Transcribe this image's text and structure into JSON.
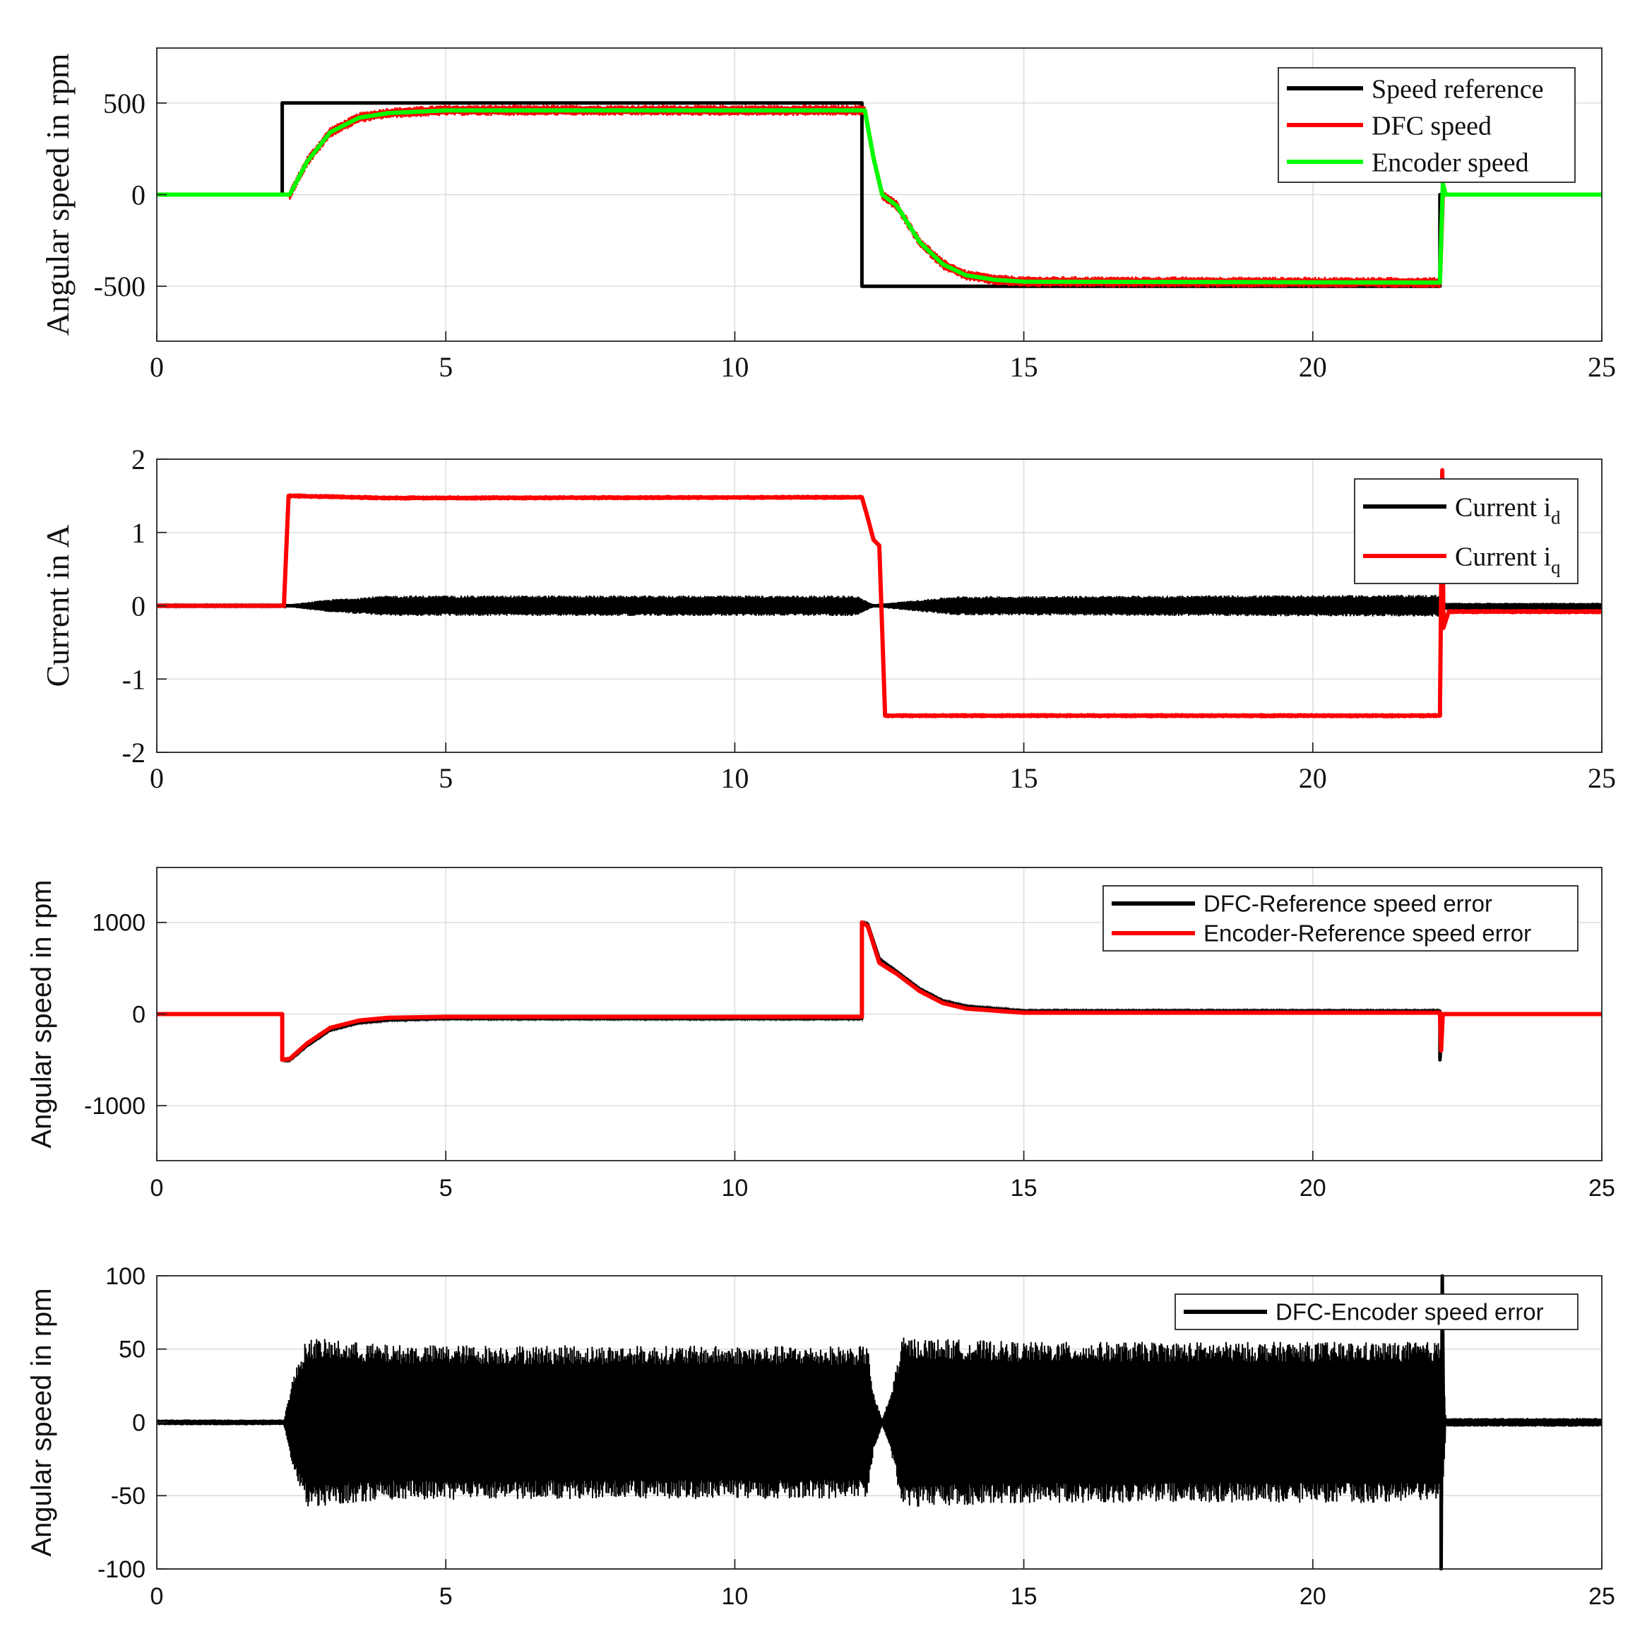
{
  "figure": {
    "background": "#ffffff",
    "grid_color": "#dcdcdc",
    "axis_color": "#262626"
  },
  "chart_data": [
    {
      "type": "line",
      "font": "serif",
      "title": "",
      "xlabel": "",
      "ylabel": "Angular speed in rpm",
      "xlim": [
        0,
        25
      ],
      "ylim": [
        -800,
        800
      ],
      "xticks": [
        0,
        5,
        10,
        15,
        20,
        25
      ],
      "yticks": [
        -500,
        0,
        500
      ],
      "ytick_labels": [
        "-500",
        "0",
        "500"
      ],
      "grid": true,
      "legend": {
        "position": "top-right",
        "entries": [
          {
            "label": "Speed reference",
            "color": "#000000"
          },
          {
            "label": "DFC speed",
            "color": "#ff0000"
          },
          {
            "label": "Encoder speed",
            "color": "#00ff00"
          }
        ]
      },
      "series": [
        {
          "name": "Speed reference",
          "color": "#000000",
          "points": [
            [
              0,
              0
            ],
            [
              2.17,
              0
            ],
            [
              2.17,
              500
            ],
            [
              12.2,
              500
            ],
            [
              12.2,
              -500
            ],
            [
              22.2,
              -500
            ],
            [
              22.2,
              0
            ],
            [
              25,
              0
            ]
          ]
        },
        {
          "name": "DFC speed",
          "color": "#ff0000",
          "band": 30,
          "points": [
            [
              0,
              0
            ],
            [
              2.3,
              0
            ],
            [
              2.6,
              180
            ],
            [
              3.0,
              340
            ],
            [
              3.5,
              420
            ],
            [
              4.0,
              445
            ],
            [
              5.0,
              460
            ],
            [
              12.25,
              460
            ],
            [
              12.4,
              200
            ],
            [
              12.55,
              0
            ],
            [
              12.8,
              -60
            ],
            [
              13.2,
              -260
            ],
            [
              13.6,
              -380
            ],
            [
              14.0,
              -440
            ],
            [
              14.5,
              -465
            ],
            [
              15.0,
              -475
            ],
            [
              22.2,
              -480
            ],
            [
              22.25,
              0
            ],
            [
              25,
              0
            ]
          ]
        },
        {
          "name": "Encoder speed",
          "color": "#00ff00",
          "band": 0,
          "points": [
            [
              0,
              0
            ],
            [
              2.3,
              0
            ],
            [
              2.6,
              180
            ],
            [
              3.0,
              340
            ],
            [
              3.5,
              420
            ],
            [
              4.0,
              445
            ],
            [
              5.0,
              460
            ],
            [
              12.25,
              460
            ],
            [
              12.4,
              200
            ],
            [
              12.55,
              0
            ],
            [
              12.8,
              -60
            ],
            [
              13.2,
              -260
            ],
            [
              13.6,
              -380
            ],
            [
              14.0,
              -440
            ],
            [
              14.5,
              -465
            ],
            [
              15.0,
              -475
            ],
            [
              22.2,
              -480
            ],
            [
              22.25,
              60
            ],
            [
              22.3,
              0
            ],
            [
              25,
              0
            ]
          ]
        }
      ]
    },
    {
      "type": "line",
      "font": "serif",
      "title": "",
      "xlabel": "",
      "ylabel": "Current in A",
      "xlim": [
        0,
        25
      ],
      "ylim": [
        -2,
        2
      ],
      "xticks": [
        0,
        5,
        10,
        15,
        20,
        25
      ],
      "yticks": [
        -2,
        -1,
        0,
        1,
        2
      ],
      "ytick_labels": [
        "-2",
        "-1",
        "0",
        "1",
        "2"
      ],
      "grid": true,
      "legend": {
        "position": "top-right",
        "entries": [
          {
            "label": "Current i",
            "subscript": "d",
            "color": "#000000"
          },
          {
            "label": "Current i",
            "subscript": "q",
            "color": "#ff0000"
          }
        ]
      },
      "series": [
        {
          "name": "Current i_d",
          "color": "#000000",
          "band_points": [
            [
              0,
              0.01
            ],
            [
              2.2,
              0.01
            ],
            [
              3.0,
              0.09
            ],
            [
              4.0,
              0.14
            ],
            [
              12.1,
              0.14
            ],
            [
              12.4,
              0.02
            ],
            [
              12.8,
              0.05
            ],
            [
              13.8,
              0.13
            ],
            [
              22.2,
              0.15
            ],
            [
              22.3,
              0.04
            ],
            [
              25,
              0.04
            ]
          ],
          "points": [
            [
              0,
              0
            ],
            [
              22.25,
              0
            ],
            [
              22.3,
              -0.03
            ],
            [
              25,
              -0.03
            ]
          ]
        },
        {
          "name": "Current i_q",
          "color": "#ff0000",
          "band": 0.035,
          "points": [
            [
              0,
              0
            ],
            [
              2.2,
              0
            ],
            [
              2.28,
              1.5
            ],
            [
              4.0,
              1.47
            ],
            [
              12.2,
              1.48
            ],
            [
              12.3,
              1.2
            ],
            [
              12.4,
              0.9
            ],
            [
              12.5,
              0.82
            ],
            [
              12.6,
              -1.5
            ],
            [
              22.2,
              -1.5
            ],
            [
              22.24,
              1.85
            ],
            [
              22.26,
              -0.3
            ],
            [
              22.35,
              -0.08
            ],
            [
              25,
              -0.08
            ]
          ]
        }
      ]
    },
    {
      "type": "line",
      "font": "sans",
      "title": "",
      "xlabel": "",
      "ylabel": "Angular speed in rpm",
      "xlim": [
        0,
        25
      ],
      "ylim": [
        -1600,
        1600
      ],
      "xticks": [
        0,
        5,
        10,
        15,
        20,
        25
      ],
      "yticks": [
        -1000,
        0,
        1000
      ],
      "ytick_labels": [
        "-1000",
        "0",
        "1000"
      ],
      "grid": true,
      "legend": {
        "position": "top-right",
        "entries": [
          {
            "label": "DFC-Reference speed error",
            "color": "#000000"
          },
          {
            "label": "Encoder-Reference speed error",
            "color": "#ff0000"
          }
        ]
      },
      "series": [
        {
          "name": "DFC-Reference speed error",
          "color": "#000000",
          "band": 10,
          "points": [
            [
              0,
              0
            ],
            [
              2.17,
              0
            ],
            [
              2.17,
              -500
            ],
            [
              2.3,
              -500
            ],
            [
              2.6,
              -340
            ],
            [
              3.0,
              -170
            ],
            [
              3.5,
              -90
            ],
            [
              4.0,
              -60
            ],
            [
              5.0,
              -45
            ],
            [
              12.2,
              -45
            ],
            [
              12.2,
              1000
            ],
            [
              12.3,
              980
            ],
            [
              12.5,
              600
            ],
            [
              12.8,
              460
            ],
            [
              13.2,
              270
            ],
            [
              13.6,
              140
            ],
            [
              14.0,
              80
            ],
            [
              15.0,
              30
            ],
            [
              22.2,
              30
            ],
            [
              22.2,
              -500
            ],
            [
              22.25,
              0
            ],
            [
              25,
              0
            ]
          ]
        },
        {
          "name": "Encoder-Reference speed error",
          "color": "#ff0000",
          "band": 0,
          "points": [
            [
              0,
              0
            ],
            [
              2.17,
              0
            ],
            [
              2.17,
              -500
            ],
            [
              2.3,
              -490
            ],
            [
              2.6,
              -320
            ],
            [
              3.0,
              -150
            ],
            [
              3.5,
              -70
            ],
            [
              4.0,
              -40
            ],
            [
              5.0,
              -30
            ],
            [
              12.2,
              -30
            ],
            [
              12.2,
              1000
            ],
            [
              12.3,
              960
            ],
            [
              12.5,
              560
            ],
            [
              12.8,
              440
            ],
            [
              13.2,
              250
            ],
            [
              13.6,
              120
            ],
            [
              14.0,
              60
            ],
            [
              15.0,
              15
            ],
            [
              22.2,
              15
            ],
            [
              22.22,
              -400
            ],
            [
              22.25,
              0
            ],
            [
              25,
              0
            ]
          ]
        }
      ]
    },
    {
      "type": "line",
      "font": "sans",
      "title": "",
      "xlabel": "",
      "ylabel": "Angular speed in rpm",
      "xlim": [
        0,
        25
      ],
      "ylim": [
        -100,
        100
      ],
      "xticks": [
        0,
        5,
        10,
        15,
        20,
        25
      ],
      "yticks": [
        -100,
        -50,
        0,
        50,
        100
      ],
      "ytick_labels": [
        "-100",
        "-50",
        "0",
        "50",
        "100"
      ],
      "grid": true,
      "legend": {
        "position": "top-right",
        "entries": [
          {
            "label": "DFC-Encoder speed error",
            "color": "#000000"
          }
        ]
      },
      "series": [
        {
          "name": "DFC-Encoder speed error",
          "color": "#000000",
          "band_points": [
            [
              0,
              2
            ],
            [
              2.2,
              2
            ],
            [
              2.35,
              30
            ],
            [
              2.6,
              58
            ],
            [
              4.0,
              53
            ],
            [
              12.3,
              52
            ],
            [
              12.4,
              20
            ],
            [
              12.55,
              2
            ],
            [
              12.7,
              20
            ],
            [
              12.9,
              58
            ],
            [
              15.0,
              55
            ],
            [
              22.25,
              55
            ],
            [
              22.3,
              3
            ],
            [
              25,
              3
            ]
          ],
          "points": [
            [
              0,
              0
            ],
            [
              22.22,
              0
            ],
            [
              22.22,
              -100
            ],
            [
              22.24,
              100
            ],
            [
              22.26,
              0
            ],
            [
              25,
              0
            ]
          ]
        }
      ]
    }
  ]
}
